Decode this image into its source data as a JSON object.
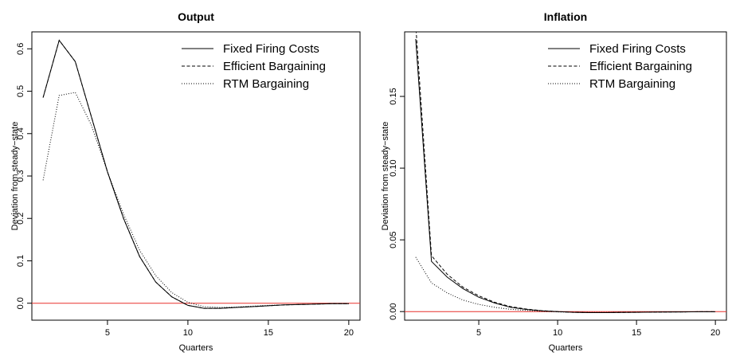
{
  "chart_data": [
    {
      "type": "line",
      "title": "Output",
      "xlabel": "Quarters",
      "ylabel": "Deviation from steady−state",
      "xlim": [
        0.3,
        20.7
      ],
      "ylim": [
        -0.04,
        0.64
      ],
      "xticks": [
        5,
        10,
        15,
        20
      ],
      "yticks": [
        0.0,
        0.1,
        0.2,
        0.3,
        0.4,
        0.5,
        0.6
      ],
      "ytick_labels": [
        "0.0",
        "0.1",
        "0.2",
        "0.3",
        "0.4",
        "0.5",
        "0.6"
      ],
      "legend_position": "top-right",
      "reference_line": {
        "y": 0,
        "color": "#e8302b"
      },
      "x": [
        1,
        2,
        3,
        4,
        5,
        6,
        7,
        8,
        9,
        10,
        11,
        12,
        13,
        14,
        15,
        16,
        17,
        18,
        19,
        20
      ],
      "series": [
        {
          "name": "Fixed Firing Costs",
          "style": "solid",
          "values": [
            0.485,
            0.62,
            0.57,
            0.44,
            0.31,
            0.2,
            0.11,
            0.05,
            0.015,
            -0.005,
            -0.012,
            -0.012,
            -0.01,
            -0.008,
            -0.006,
            -0.004,
            -0.003,
            -0.002,
            -0.001,
            -0.001
          ]
        },
        {
          "name": "Efficient Bargaining",
          "style": "dashed",
          "values": [
            0.485,
            0.62,
            0.57,
            0.44,
            0.31,
            0.2,
            0.11,
            0.05,
            0.015,
            -0.005,
            -0.012,
            -0.012,
            -0.01,
            -0.008,
            -0.006,
            -0.004,
            -0.003,
            -0.002,
            -0.001,
            -0.001
          ]
        },
        {
          "name": "RTM Bargaining",
          "style": "dotted",
          "values": [
            0.29,
            0.49,
            0.497,
            0.42,
            0.31,
            0.21,
            0.125,
            0.065,
            0.025,
            0.002,
            -0.008,
            -0.01,
            -0.009,
            -0.007,
            -0.005,
            -0.004,
            -0.003,
            -0.002,
            -0.001,
            -0.001
          ]
        }
      ]
    },
    {
      "type": "line",
      "title": "Inflation",
      "xlabel": "Quarters",
      "ylabel": "Deviation from steady−state",
      "xlim": [
        0.3,
        20.7
      ],
      "ylim": [
        -0.006,
        0.195
      ],
      "xticks": [
        5,
        10,
        15,
        20
      ],
      "yticks": [
        0.0,
        0.05,
        0.1,
        0.15
      ],
      "ytick_labels": [
        "0.00",
        "0.05",
        "0.10",
        "0.15"
      ],
      "legend_position": "top-right",
      "reference_line": {
        "y": 0,
        "color": "#e8302b"
      },
      "x": [
        1,
        2,
        3,
        4,
        5,
        6,
        7,
        8,
        9,
        10,
        11,
        12,
        13,
        14,
        15,
        16,
        17,
        18,
        19,
        20
      ],
      "series": [
        {
          "name": "Fixed Firing Costs",
          "style": "solid",
          "values": [
            0.19,
            0.035,
            0.024,
            0.016,
            0.01,
            0.006,
            0.003,
            0.0015,
            0.0005,
            0.0,
            -0.0005,
            -0.0007,
            -0.0007,
            -0.0006,
            -0.0005,
            -0.0004,
            -0.0003,
            -0.0002,
            -0.0001,
            -0.0001
          ]
        },
        {
          "name": "Efficient Bargaining",
          "style": "dashed",
          "values": [
            0.2,
            0.039,
            0.026,
            0.017,
            0.011,
            0.0065,
            0.0035,
            0.0018,
            0.0006,
            0.0,
            -0.0005,
            -0.0007,
            -0.0007,
            -0.0006,
            -0.0005,
            -0.0004,
            -0.0003,
            -0.0002,
            -0.0001,
            -0.0001
          ]
        },
        {
          "name": "RTM Bargaining",
          "style": "dotted",
          "values": [
            0.038,
            0.02,
            0.013,
            0.008,
            0.005,
            0.003,
            0.0016,
            0.0008,
            0.0002,
            -0.0002,
            -0.0005,
            -0.0006,
            -0.0006,
            -0.0005,
            -0.0004,
            -0.0003,
            -0.0002,
            -0.0002,
            -0.0001,
            -0.0001
          ]
        }
      ]
    }
  ]
}
